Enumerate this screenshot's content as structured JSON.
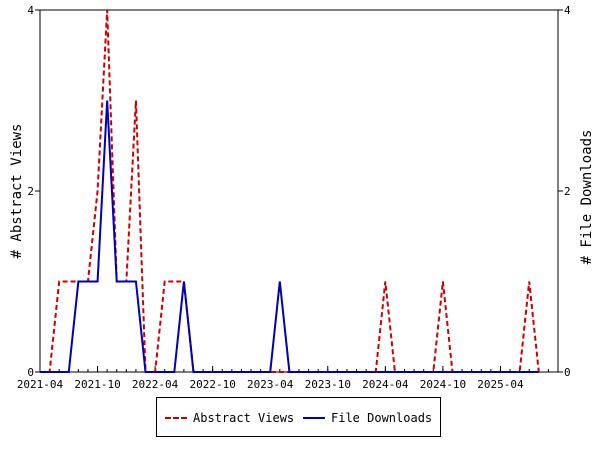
{
  "chart_data": {
    "type": "line",
    "title": "",
    "xlabel": "",
    "ylabel": "# Abstract Views",
    "y2label": "# File Downloads",
    "x_ticks": [
      "2021-04",
      "2021-10",
      "2022-04",
      "2022-10",
      "2023-04",
      "2023-10",
      "2024-04",
      "2024-10",
      "2025-04"
    ],
    "x_start": "2021-04",
    "x_end": "2025-10",
    "ylim": [
      0,
      4
    ],
    "y_ticks": [
      0,
      2,
      4
    ],
    "y2lim": [
      0,
      4
    ],
    "y2_ticks": [
      0,
      2,
      4
    ],
    "grid": false,
    "legend_position": "bottom",
    "series": [
      {
        "name": "Abstract Views",
        "axis": "left",
        "style": "dashed",
        "color": "#cc0000",
        "points": [
          [
            "2021-04",
            0
          ],
          [
            "2021-05",
            0
          ],
          [
            "2021-06",
            1
          ],
          [
            "2021-07",
            1
          ],
          [
            "2021-08",
            1
          ],
          [
            "2021-09",
            1
          ],
          [
            "2021-10",
            2
          ],
          [
            "2021-11",
            4
          ],
          [
            "2021-12",
            1
          ],
          [
            "2022-01",
            1
          ],
          [
            "2022-02",
            3
          ],
          [
            "2022-03",
            0
          ],
          [
            "2022-04",
            0
          ],
          [
            "2022-05",
            1
          ],
          [
            "2022-06",
            1
          ],
          [
            "2022-07",
            1
          ],
          [
            "2022-08",
            0
          ],
          [
            "2024-03",
            0
          ],
          [
            "2024-04",
            1
          ],
          [
            "2024-05",
            0
          ],
          [
            "2024-09",
            0
          ],
          [
            "2024-10",
            1
          ],
          [
            "2024-11",
            0
          ],
          [
            "2025-06",
            0
          ],
          [
            "2025-07",
            1
          ],
          [
            "2025-08",
            0
          ]
        ]
      },
      {
        "name": "File Downloads",
        "axis": "right",
        "style": "solid",
        "color": "#0000b3",
        "points": [
          [
            "2021-04",
            0
          ],
          [
            "2021-07",
            0
          ],
          [
            "2021-08",
            1
          ],
          [
            "2021-09",
            1
          ],
          [
            "2021-10",
            1
          ],
          [
            "2021-11",
            3
          ],
          [
            "2021-12",
            1
          ],
          [
            "2022-01",
            1
          ],
          [
            "2022-02",
            1
          ],
          [
            "2022-03",
            0
          ],
          [
            "2022-06",
            0
          ],
          [
            "2022-07",
            1
          ],
          [
            "2022-08",
            0
          ],
          [
            "2023-04",
            0
          ],
          [
            "2023-05",
            1
          ],
          [
            "2023-06",
            0
          ],
          [
            "2025-08",
            0
          ]
        ]
      }
    ]
  }
}
